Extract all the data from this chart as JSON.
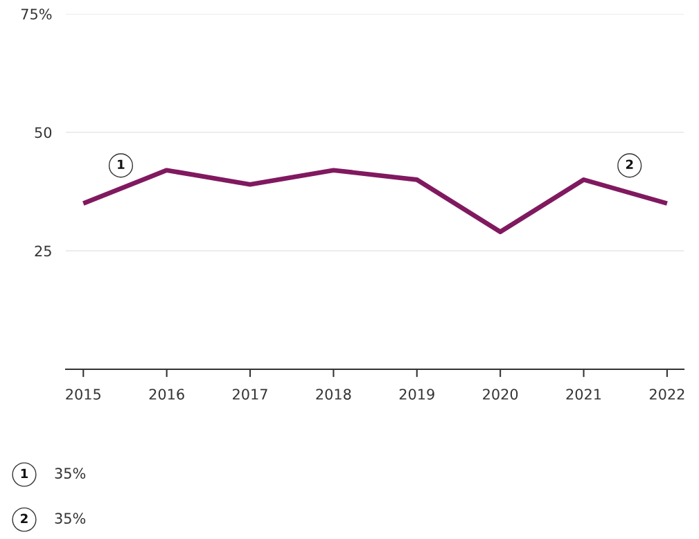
{
  "chart_data": {
    "type": "line",
    "x": [
      2015,
      2016,
      2017,
      2018,
      2019,
      2020,
      2021,
      2022
    ],
    "series": [
      {
        "color": "#80195f",
        "values": [
          35,
          42,
          39,
          42,
          40,
          29,
          40,
          35
        ]
      }
    ],
    "xlim": [
      2014.79,
      2022.2
    ],
    "xticks": [
      2015,
      2016,
      2017,
      2018,
      2019,
      2020,
      2021,
      2022
    ],
    "ylim": [
      0,
      75
    ],
    "yticks": [
      25,
      50,
      {
        "value": 75,
        "label": "75%"
      }
    ],
    "grid": "y",
    "marker": "none",
    "line_style": "solid",
    "annotations": [
      {
        "text": "1",
        "x": 2015.45,
        "y": 43
      },
      {
        "text": "2",
        "x": 2021.55,
        "y": 43
      },
      "1",
      "35%",
      "2",
      "35%"
    ]
  }
}
